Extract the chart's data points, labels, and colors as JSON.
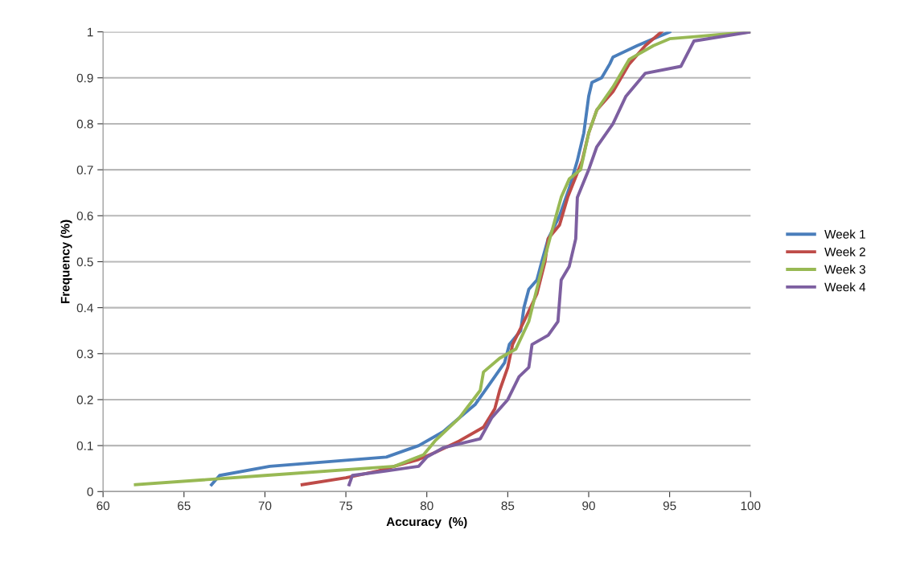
{
  "chart_data": {
    "type": "line",
    "xlabel": "Accuracy  (%)",
    "ylabel": "Frequency (%)",
    "xlim": [
      60,
      100
    ],
    "xticks": [
      60,
      65,
      70,
      75,
      80,
      85,
      90,
      95,
      100
    ],
    "ylim": [
      0,
      1
    ],
    "yticks": [
      0,
      0.1,
      0.2,
      0.3,
      0.4,
      0.5,
      0.6,
      0.7,
      0.8,
      0.9,
      1
    ],
    "grid": "y",
    "legend": "right",
    "marker": "none",
    "line_style": "solid",
    "series": [
      {
        "name": "Week 1",
        "color": "#4a7ebb",
        "x": [
          66.7,
          67.2,
          70.3,
          77.5,
          79.5,
          81,
          82,
          83,
          84,
          84.8,
          85.1,
          85.8,
          86,
          86.3,
          86.8,
          87.1,
          87.5,
          88.2,
          88.8,
          89.3,
          89.7,
          90,
          90.2,
          90.8,
          91.3,
          91.5,
          93,
          95
        ],
        "values": [
          0.015,
          0.035,
          0.055,
          0.075,
          0.1,
          0.13,
          0.16,
          0.19,
          0.24,
          0.28,
          0.32,
          0.35,
          0.4,
          0.44,
          0.46,
          0.5,
          0.55,
          0.6,
          0.66,
          0.72,
          0.78,
          0.86,
          0.89,
          0.9,
          0.93,
          0.945,
          0.97,
          1.0
        ]
      },
      {
        "name": "Week 2",
        "color": "#be4b48",
        "x": [
          72.3,
          75,
          77,
          79.5,
          80.5,
          82,
          83.5,
          84.2,
          84.5,
          85,
          85.3,
          86,
          86.8,
          87.3,
          87.5,
          88.2,
          88.7,
          89.6,
          90,
          90.5,
          91.5,
          92.5,
          93.5,
          94.5
        ],
        "values": [
          0.015,
          0.03,
          0.045,
          0.07,
          0.085,
          0.11,
          0.14,
          0.18,
          0.22,
          0.27,
          0.32,
          0.37,
          0.43,
          0.5,
          0.55,
          0.58,
          0.64,
          0.72,
          0.78,
          0.83,
          0.87,
          0.93,
          0.97,
          1.0
        ]
      },
      {
        "name": "Week 3",
        "color": "#98b954",
        "x": [
          62,
          70,
          78,
          79.8,
          80.5,
          82,
          83.3,
          83.5,
          84.5,
          85.5,
          86.3,
          87,
          87.6,
          88.3,
          88.8,
          89.5,
          90,
          90.5,
          91.5,
          92.5,
          94,
          95,
          96.7,
          100
        ],
        "values": [
          0.015,
          0.035,
          0.055,
          0.08,
          0.11,
          0.16,
          0.22,
          0.26,
          0.29,
          0.31,
          0.37,
          0.47,
          0.55,
          0.64,
          0.68,
          0.7,
          0.78,
          0.83,
          0.88,
          0.94,
          0.97,
          0.985,
          0.99,
          1.0
        ]
      },
      {
        "name": "Week 4",
        "color": "#7d5fa0",
        "x": [
          75.2,
          75.4,
          77.5,
          79.5,
          80,
          81,
          83.3,
          84,
          85,
          85.7,
          86.3,
          86.5,
          87.5,
          88.1,
          88.3,
          88.8,
          89.2,
          89.3,
          90,
          90.5,
          91.5,
          92.3,
          93.5,
          95.7,
          96.5,
          100
        ],
        "values": [
          0.015,
          0.035,
          0.045,
          0.055,
          0.075,
          0.095,
          0.115,
          0.16,
          0.2,
          0.25,
          0.27,
          0.32,
          0.34,
          0.37,
          0.46,
          0.49,
          0.55,
          0.64,
          0.7,
          0.75,
          0.8,
          0.86,
          0.91,
          0.925,
          0.98,
          1.0
        ]
      }
    ]
  }
}
